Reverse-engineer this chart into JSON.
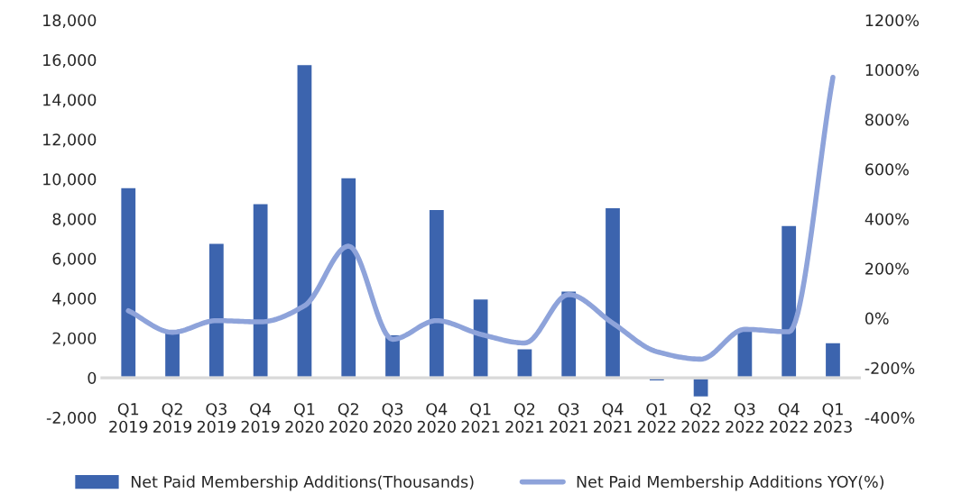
{
  "chart_data": {
    "type": "bar",
    "categories": [
      "Q1\n2019",
      "Q2\n2019",
      "Q3\n2019",
      "Q4\n2019",
      "Q1\n2020",
      "Q2\n2020",
      "Q3\n2020",
      "Q4\n2020",
      "Q1\n2021",
      "Q2\n2021",
      "Q3\n2021",
      "Q4\n2021",
      "Q1\n2022",
      "Q2\n2022",
      "Q3\n2022",
      "Q4\n2022",
      "Q1\n2023"
    ],
    "series": [
      {
        "name": "Net Paid Membership Additions(Thousands)",
        "color": "#3c64ae",
        "values": [
          9600,
          2400,
          6800,
          8800,
          15800,
          10100,
          2200,
          8500,
          4000,
          1500,
          4400,
          8600,
          -200,
          -1000,
          2400,
          7700,
          1800
        ]
      },
      {
        "name": "Net Paid Membership Additions YOY(%)",
        "type": "line",
        "axis": "y2",
        "color": "#8ea3da",
        "values": [
          30,
          -57,
          -10,
          -15,
          50,
          290,
          -85,
          -10,
          -65,
          -100,
          95,
          -20,
          -135,
          -165,
          -45,
          -55,
          970
        ]
      }
    ],
    "ylim": [
      -2000,
      18000
    ],
    "yticks": [
      {
        "value": -2000,
        "label": "-2,000"
      },
      0,
      {
        "value": 2000,
        "label": "2,000"
      },
      {
        "value": 4000,
        "label": "4,000"
      },
      {
        "value": 6000,
        "label": "6,000"
      },
      {
        "value": 8000,
        "label": "8,000"
      },
      {
        "value": 10000,
        "label": "10,000"
      },
      {
        "value": 12000,
        "label": "12,000"
      },
      {
        "value": 14000,
        "label": "14,000"
      },
      {
        "value": 16000,
        "label": "16,000"
      },
      {
        "value": 18000,
        "label": "18,000"
      }
    ],
    "y2lim": [
      -400,
      1200
    ],
    "y2ticks": [
      {
        "value": -400,
        "label": "-400%"
      },
      {
        "value": -200,
        "label": "-200%"
      },
      {
        "value": 0,
        "label": "0%"
      },
      {
        "value": 200,
        "label": "200%"
      },
      {
        "value": 400,
        "label": "400%"
      },
      {
        "value": 600,
        "label": "600%"
      },
      {
        "value": 800,
        "label": "800%"
      },
      {
        "value": 1000,
        "label": "1000%"
      },
      {
        "value": 1200,
        "label": "1200%"
      }
    ],
    "legend": "bottom",
    "grid": false
  }
}
